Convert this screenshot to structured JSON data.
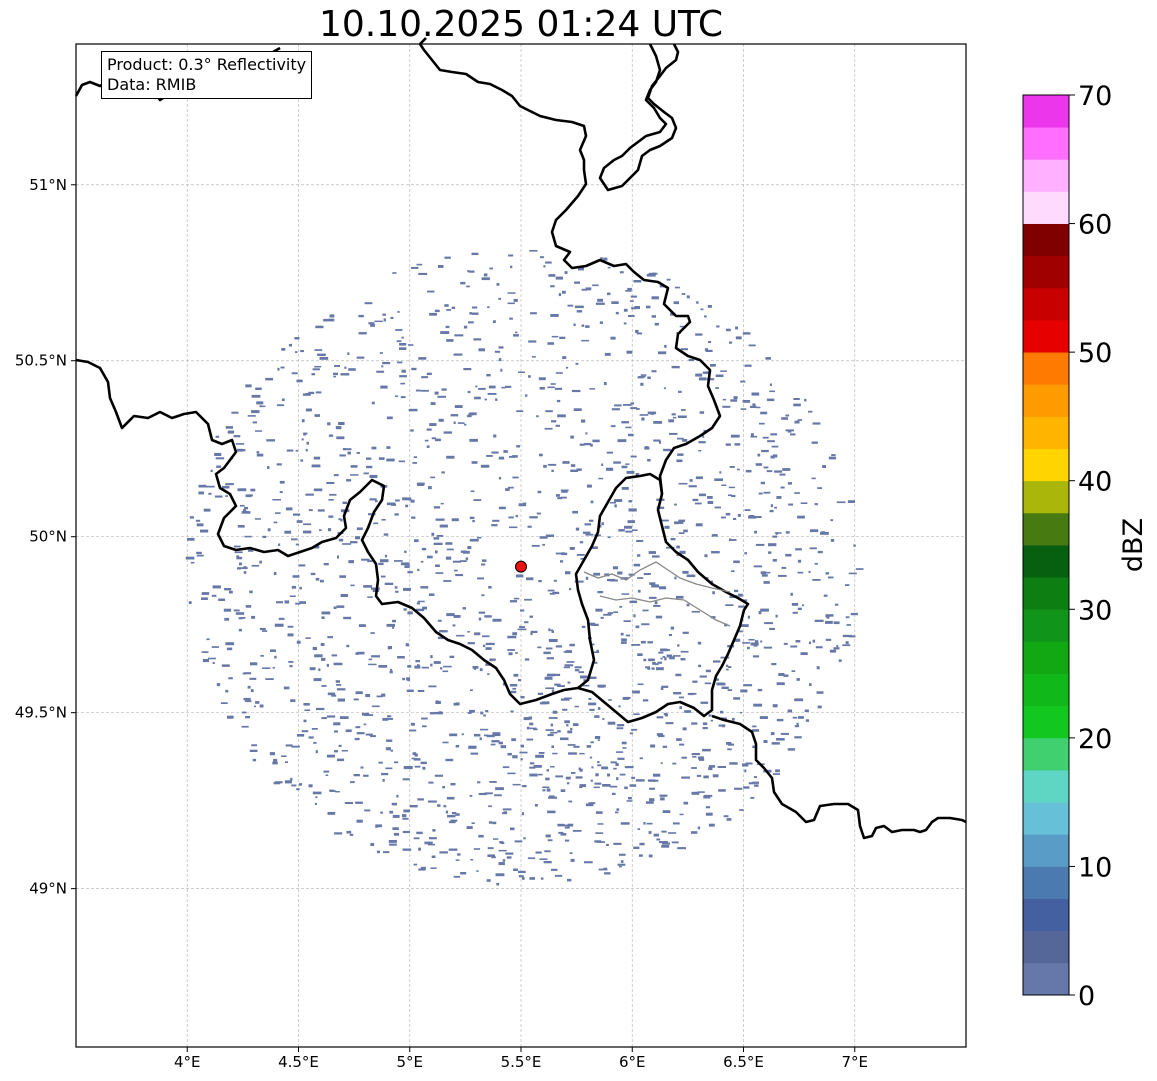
{
  "title": "10.10.2025 01:24 UTC",
  "info": {
    "product_line": "Product: 0.3° Reflectivity",
    "data_line": "Data: RMIB"
  },
  "map": {
    "lon_ticks": [
      {
        "value": 4.0,
        "label": "4°E"
      },
      {
        "value": 4.5,
        "label": "4.5°E"
      },
      {
        "value": 5.0,
        "label": "5°E"
      },
      {
        "value": 5.5,
        "label": "5.5°E"
      },
      {
        "value": 6.0,
        "label": "6°E"
      },
      {
        "value": 6.5,
        "label": "6.5°E"
      },
      {
        "value": 7.0,
        "label": "7°E"
      }
    ],
    "lat_ticks": [
      {
        "value": 51.0,
        "label": "51°N"
      },
      {
        "value": 50.5,
        "label": "50.5°N"
      },
      {
        "value": 50.0,
        "label": "50°N"
      },
      {
        "value": 49.5,
        "label": "49.5°N"
      },
      {
        "value": 49.0,
        "label": "49°N"
      }
    ],
    "lon_range": [
      3.5,
      7.5
    ],
    "lat_range": [
      48.55,
      51.4
    ],
    "radar_site": {
      "lon": 5.5,
      "lat": 49.915
    },
    "echo_color": "#6678a8",
    "border_color": "#000000",
    "river_color": "#888888",
    "site_color": "#ee1111"
  },
  "colorbar": {
    "label": "dBZ",
    "min": 0,
    "max": 70,
    "ticks": [
      {
        "value": 0,
        "label": "0"
      },
      {
        "value": 10,
        "label": "10"
      },
      {
        "value": 20,
        "label": "20"
      },
      {
        "value": 30,
        "label": "30"
      },
      {
        "value": 40,
        "label": "40"
      },
      {
        "value": 50,
        "label": "50"
      },
      {
        "value": 60,
        "label": "60"
      },
      {
        "value": 70,
        "label": "70"
      }
    ],
    "colors": [
      "#6677aa",
      "#556699",
      "#4460a0",
      "#4a7ab0",
      "#5a9cc8",
      "#66c0d8",
      "#5fd6c4",
      "#40d070",
      "#12c820",
      "#10b81a",
      "#12a814",
      "#10941a",
      "#0d7f12",
      "#076010",
      "#477a10",
      "#aab60a",
      "#ffd400",
      "#ffb400",
      "#ff9a00",
      "#ff7a00",
      "#e60000",
      "#c80000",
      "#a00000",
      "#800000",
      "#ffdaff",
      "#ffb0ff",
      "#ff6eff",
      "#ec36ec"
    ]
  }
}
